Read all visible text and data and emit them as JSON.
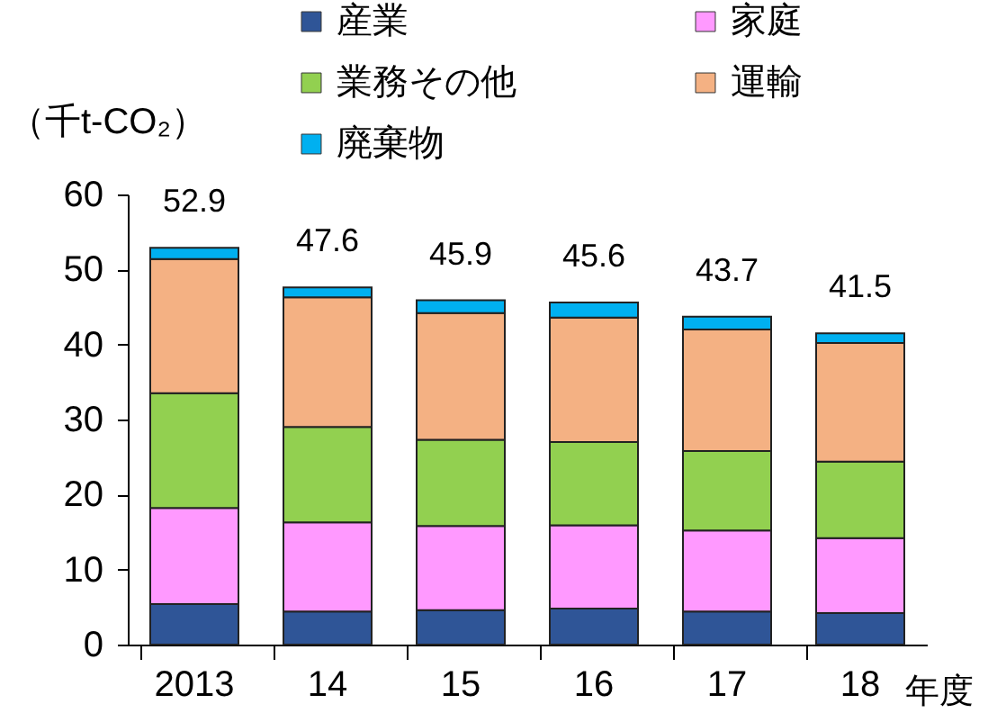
{
  "chart_data": {
    "type": "bar",
    "stacked": true,
    "ylabel": "（千t-CO₂）",
    "xlabel": "年度",
    "categories": [
      "2013",
      "14",
      "15",
      "16",
      "17",
      "18"
    ],
    "series": [
      {
        "name": "産業",
        "color": "#2f5597",
        "values": [
          5.4,
          4.4,
          4.6,
          4.8,
          4.4,
          4.2
        ]
      },
      {
        "name": "家庭",
        "color": "#ff99ff",
        "values": [
          12.8,
          11.9,
          11.2,
          11.1,
          10.8,
          10.0
        ]
      },
      {
        "name": "業務その他",
        "color": "#92d050",
        "values": [
          15.3,
          12.7,
          11.5,
          11.1,
          10.6,
          10.2
        ]
      },
      {
        "name": "運輸",
        "color": "#f4b183",
        "values": [
          17.9,
          17.3,
          16.9,
          16.6,
          16.2,
          15.8
        ]
      },
      {
        "name": "廃棄物",
        "color": "#00b0f0",
        "values": [
          1.5,
          1.3,
          1.7,
          2.0,
          1.7,
          1.3
        ]
      }
    ],
    "totals": [
      "52.9",
      "47.6",
      "45.9",
      "45.6",
      "43.7",
      "41.5"
    ],
    "ylim": [
      0,
      60
    ],
    "yticks": [
      0,
      10,
      20,
      30,
      40,
      50,
      60
    ],
    "grid": false,
    "legend": "top"
  }
}
